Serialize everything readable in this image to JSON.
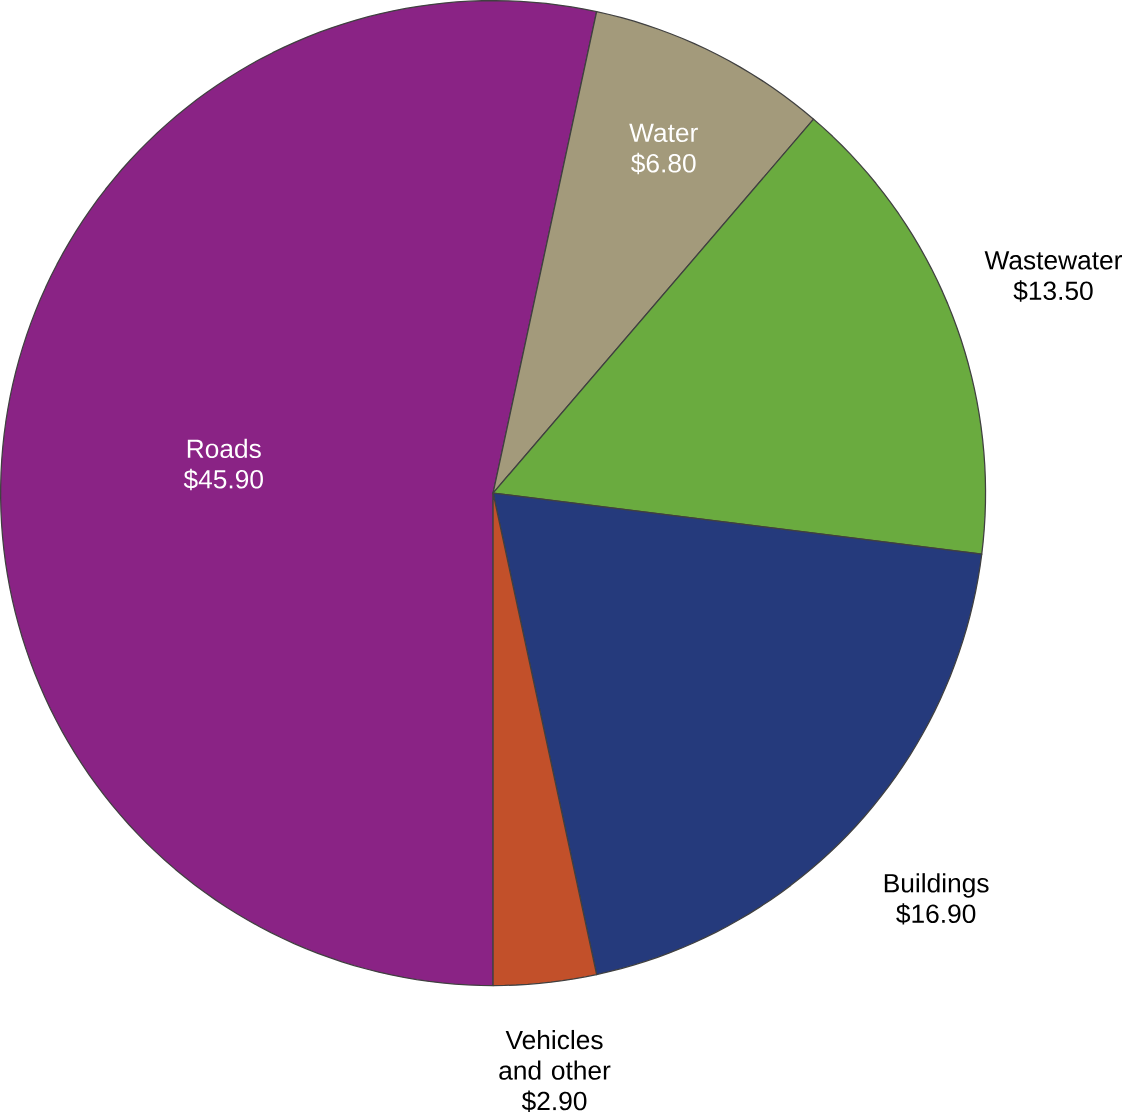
{
  "chart_data": {
    "type": "pie",
    "categories": [
      "Roads",
      "Water",
      "Wastewater",
      "Buildings",
      "Vehicles and other"
    ],
    "values": [
      45.9,
      6.8,
      13.5,
      16.9,
      2.9
    ],
    "colors": [
      "#8a2385",
      "#a39a7b",
      "#6aab3f",
      "#253a7c",
      "#c2502a"
    ],
    "value_labels": [
      "$45.90",
      "$6.80",
      "$13.50",
      "$16.90",
      "$2.90"
    ]
  }
}
